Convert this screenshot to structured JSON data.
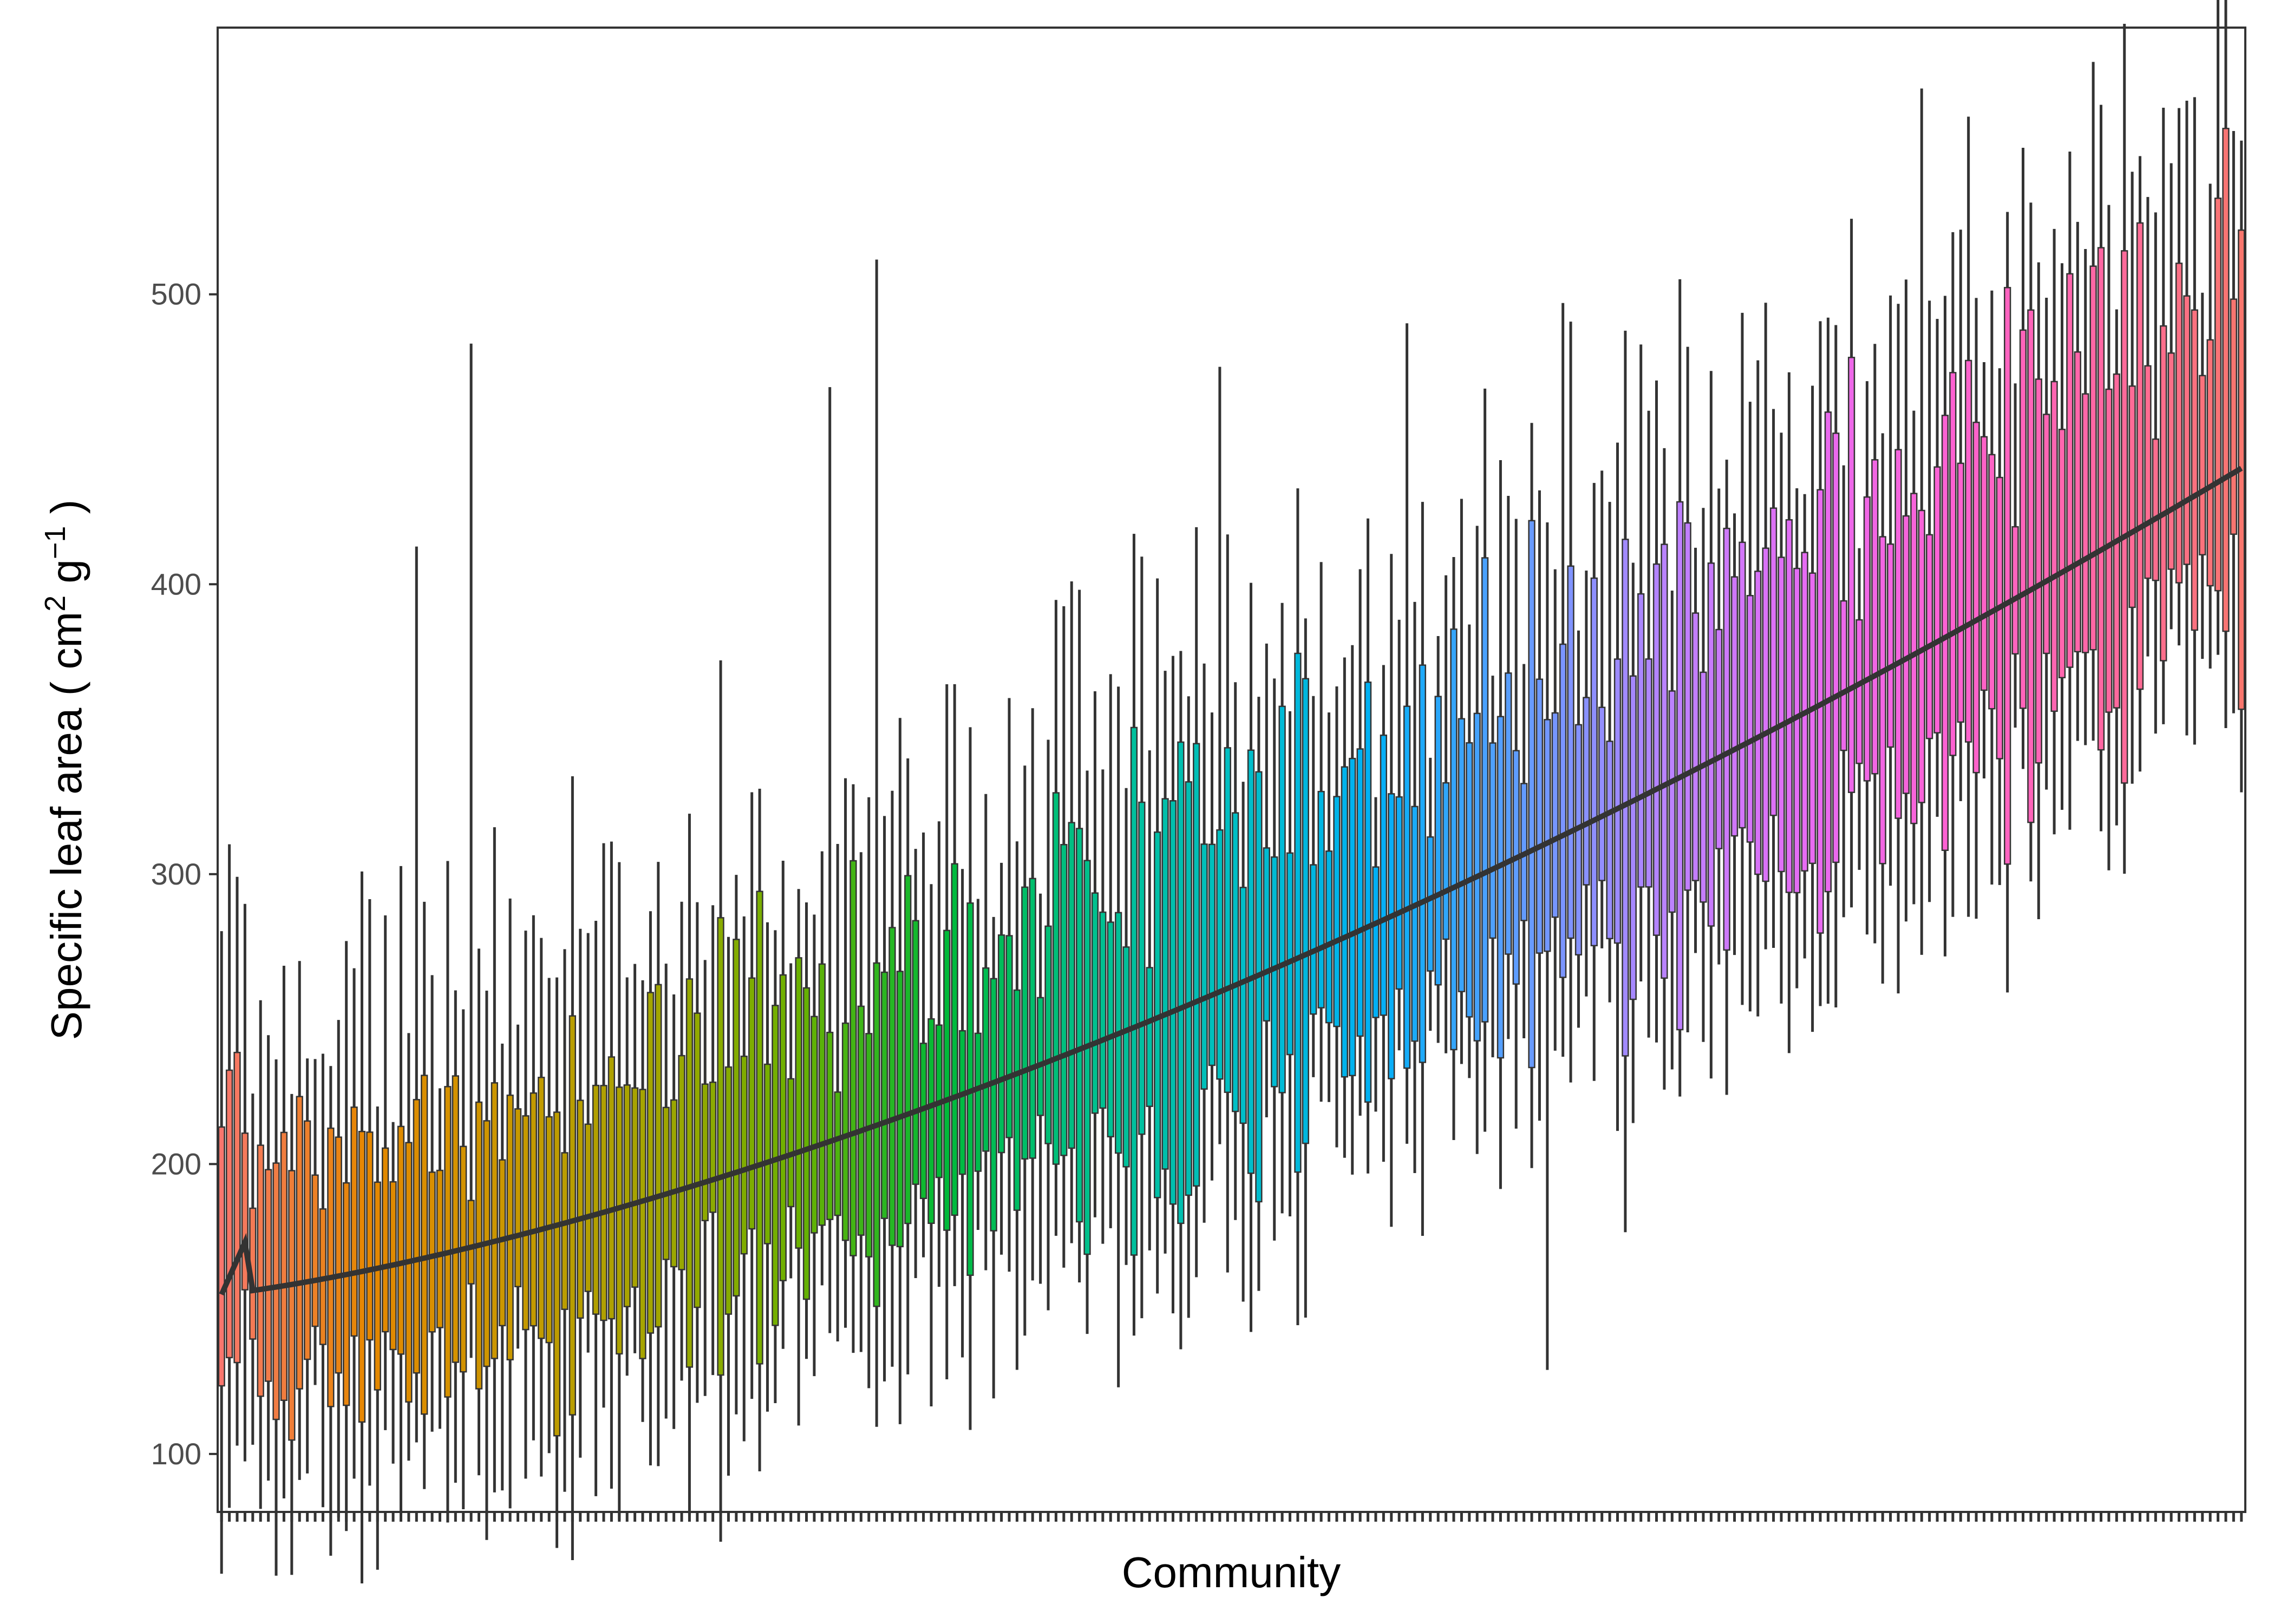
{
  "chart_data": {
    "type": "boxplot",
    "title": "",
    "xlabel": "Community",
    "ylabel": "Specific leaf area ( cm{sup:2} g{sup:−1} )",
    "ylabel_parts": {
      "main": "Specific leaf area ( cm",
      "sup1": "2",
      "mid": " g",
      "sup2": "−1",
      "end": " )"
    },
    "ylim": [
      80,
      592
    ],
    "yticks": [
      100,
      200,
      300,
      400,
      500
    ],
    "ytick_labels": [
      "100",
      "200",
      "300",
      "400",
      "500"
    ],
    "x_tick_labels_shown": false,
    "sorted_by": "median",
    "grid": false,
    "legend": "none",
    "n_communities": 260,
    "median_range": [
      155,
      440
    ],
    "notable_whisker_max": [
      413,
      483,
      468,
      512,
      475,
      490,
      497,
      571,
      525,
      568
    ],
    "notable_whisker_min": [
      104,
      119,
      120,
      123,
      129
    ],
    "color_gradient": [
      "#f8766d",
      "#e58700",
      "#c99800",
      "#a3a500",
      "#6bb100",
      "#00ba38",
      "#00c08b",
      "#00bfc4",
      "#00b0f6",
      "#619cff",
      "#b983ff",
      "#e76bf3",
      "#fd61d1",
      "#ff67a4",
      "#f8766d"
    ],
    "colors": {
      "box_outline": "#333333",
      "median_line": "#333333",
      "panel_border": "#333333",
      "background": "#ffffff"
    }
  }
}
